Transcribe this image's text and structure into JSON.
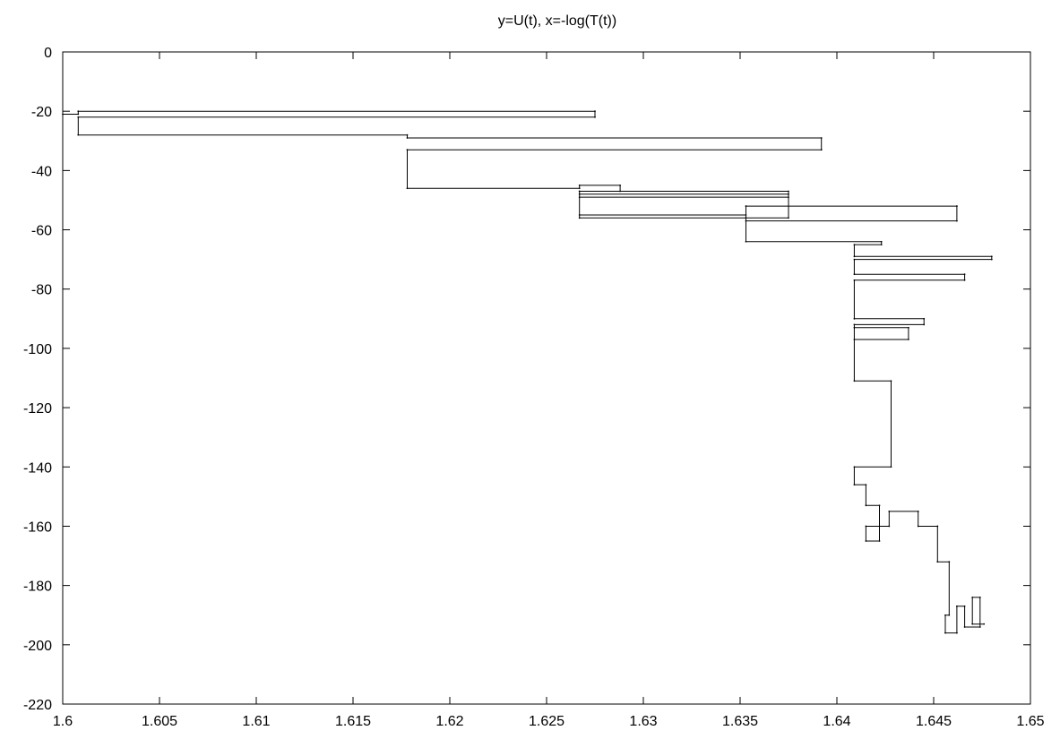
{
  "chart_data": {
    "type": "line",
    "title": "y=U(t), x=-log(T(t))",
    "xlabel": "",
    "ylabel": "",
    "xlim": [
      1.6,
      1.65
    ],
    "ylim": [
      -220,
      0
    ],
    "xticks": [
      1.6,
      1.605,
      1.61,
      1.615,
      1.62,
      1.625,
      1.63,
      1.635,
      1.64,
      1.645,
      1.65
    ],
    "xtick_labels": [
      "1.6",
      "1.605",
      "1.61",
      "1.615",
      "1.62",
      "1.625",
      "1.63",
      "1.635",
      "1.64",
      "1.645",
      "1.65"
    ],
    "yticks": [
      0,
      -20,
      -40,
      -60,
      -80,
      -100,
      -120,
      -140,
      -160,
      -180,
      -200,
      -220
    ],
    "ytick_labels": [
      "0",
      "-20",
      "-40",
      "-60",
      "-80",
      "-100",
      "-120",
      "-140",
      "-160",
      "-180",
      "-200",
      "-220"
    ],
    "grid": false,
    "series": [
      {
        "color": "#000000",
        "x": [
          1.6,
          1.6008,
          1.6008,
          1.6275,
          1.6275,
          1.6008,
          1.6008,
          1.6178,
          1.6178,
          1.6392,
          1.6392,
          1.6178,
          1.6178,
          1.6267,
          1.6267,
          1.6288,
          1.6288,
          1.6267,
          1.6267,
          1.6375,
          1.6375,
          1.6267,
          1.6267,
          1.6353,
          1.6353,
          1.6462,
          1.6462,
          1.6353,
          1.6353,
          1.6375,
          1.6375,
          1.6267,
          1.6267,
          1.6353,
          1.6353,
          1.6423,
          1.6423,
          1.6409,
          1.6409,
          1.648,
          1.648,
          1.6409,
          1.6409,
          1.6466,
          1.6466,
          1.6409,
          1.6409,
          1.6445,
          1.6445,
          1.6409,
          1.6409,
          1.6437,
          1.6437,
          1.6409,
          1.6409,
          1.6428,
          1.6428,
          1.6409,
          1.6409,
          1.6415,
          1.6415,
          1.6422,
          1.6422,
          1.6415,
          1.6415,
          1.6427,
          1.6427,
          1.6442,
          1.6442,
          1.6452,
          1.6452,
          1.6458,
          1.6458,
          1.6456,
          1.6456,
          1.6462,
          1.6462,
          1.6466,
          1.6466,
          1.6474,
          1.6474,
          1.647,
          1.647,
          1.6476
        ],
        "y": [
          -21,
          -21,
          -20,
          -20,
          -22,
          -22,
          -28,
          -28,
          -29,
          -29,
          -33,
          -33,
          -46,
          -46,
          -45,
          -45,
          -47,
          -47,
          -48,
          -48,
          -49,
          -49,
          -56,
          -56,
          -52,
          -52,
          -57,
          -57,
          -56,
          -56,
          -47,
          -47,
          -55,
          -55,
          -64,
          -64,
          -65,
          -65,
          -69,
          -69,
          -70,
          -70,
          -75,
          -75,
          -77,
          -77,
          -90,
          -90,
          -92,
          -92,
          -97,
          -97,
          -93,
          -93,
          -111,
          -111,
          -140,
          -140,
          -146,
          -146,
          -153,
          -153,
          -165,
          -165,
          -160,
          -160,
          -155,
          -155,
          -160,
          -160,
          -172,
          -172,
          -190,
          -190,
          -196,
          -196,
          -187,
          -187,
          -194,
          -194,
          -184,
          -184,
          -193,
          -193
        ]
      }
    ]
  }
}
